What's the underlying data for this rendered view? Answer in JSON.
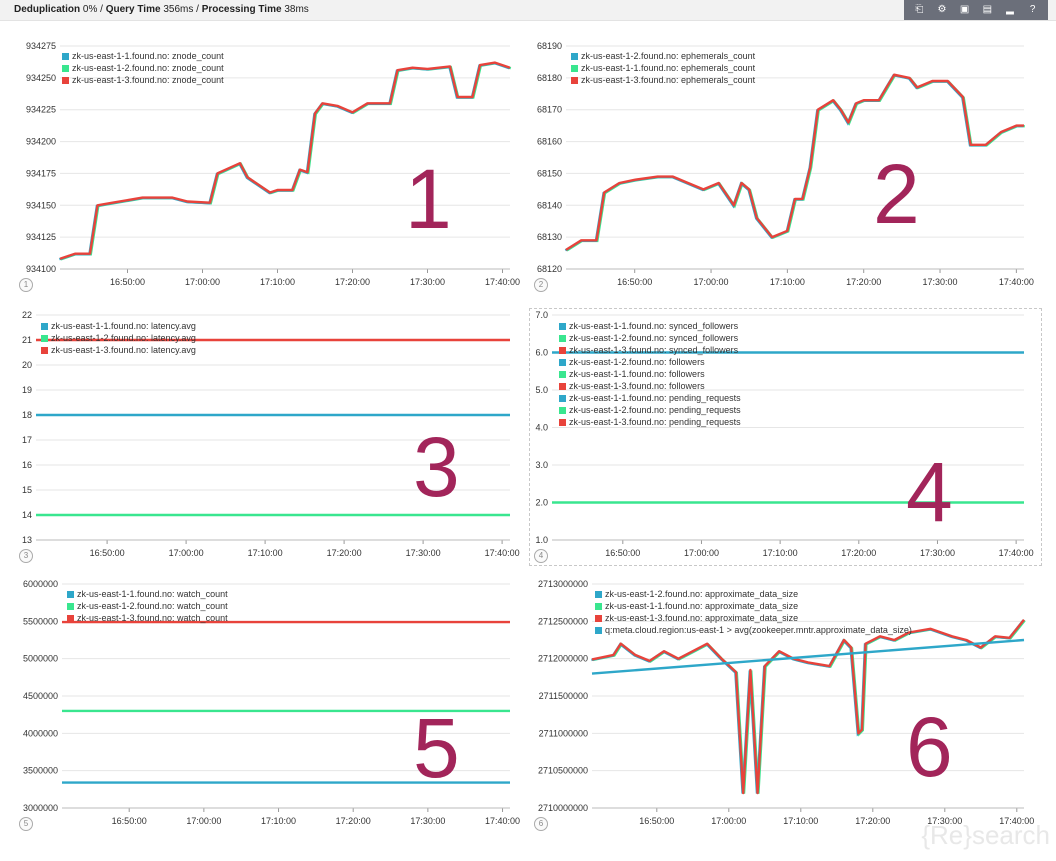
{
  "header": {
    "dedup_label": "Deduplication",
    "dedup_value": "0%",
    "query_label": "Query Time",
    "query_value": "356ms",
    "proc_label": "Processing Time",
    "proc_value": "38ms"
  },
  "toolbar": [
    {
      "icon": "export-icon",
      "glyph": "⎗"
    },
    {
      "icon": "gear-icon",
      "glyph": "⚙"
    },
    {
      "icon": "save-icon",
      "glyph": "▣"
    },
    {
      "icon": "folder-icon",
      "glyph": "▤"
    },
    {
      "icon": "chart-icon",
      "glyph": "▂"
    },
    {
      "icon": "help-icon",
      "glyph": "?"
    }
  ],
  "watermark": "{Re}search",
  "x_ticks": [
    "16:50:00",
    "17:00:00",
    "17:10:00",
    "17:20:00",
    "17:30:00",
    "17:40:00"
  ],
  "panels": [
    {
      "id": 1,
      "big": "1",
      "legend": [
        {
          "name": "zk-us-east-1-1.found.no: znode_count",
          "color": "#2ea7c9"
        },
        {
          "name": "zk-us-east-1-2.found.no: znode_count",
          "color": "#39e68f"
        },
        {
          "name": "zk-us-east-1-3.found.no: znode_count",
          "color": "#e8433b"
        }
      ]
    },
    {
      "id": 2,
      "big": "2",
      "legend": [
        {
          "name": "zk-us-east-1-2.found.no: ephemerals_count",
          "color": "#2ea7c9"
        },
        {
          "name": "zk-us-east-1-1.found.no: ephemerals_count",
          "color": "#39e68f"
        },
        {
          "name": "zk-us-east-1-3.found.no: ephemerals_count",
          "color": "#e8433b"
        }
      ]
    },
    {
      "id": 3,
      "big": "3",
      "legend": [
        {
          "name": "zk-us-east-1-1.found.no: latency.avg",
          "color": "#2ea7c9"
        },
        {
          "name": "zk-us-east-1-2.found.no: latency.avg",
          "color": "#39e68f"
        },
        {
          "name": "zk-us-east-1-3.found.no: latency.avg",
          "color": "#e8433b"
        }
      ]
    },
    {
      "id": 4,
      "big": "4",
      "legend": [
        {
          "name": "zk-us-east-1-1.found.no: synced_followers",
          "color": "#2ea7c9"
        },
        {
          "name": "zk-us-east-1-2.found.no: synced_followers",
          "color": "#39e68f"
        },
        {
          "name": "zk-us-east-1-3.found.no: synced_followers",
          "color": "#e8433b"
        },
        {
          "name": "zk-us-east-1-2.found.no: followers",
          "color": "#2ea7c9"
        },
        {
          "name": "zk-us-east-1-1.found.no: followers",
          "color": "#39e68f"
        },
        {
          "name": "zk-us-east-1-3.found.no: followers",
          "color": "#e8433b"
        },
        {
          "name": "zk-us-east-1-1.found.no: pending_requests",
          "color": "#2ea7c9"
        },
        {
          "name": "zk-us-east-1-2.found.no: pending_requests",
          "color": "#39e68f"
        },
        {
          "name": "zk-us-east-1-3.found.no: pending_requests",
          "color": "#e8433b"
        }
      ]
    },
    {
      "id": 5,
      "big": "5",
      "legend": [
        {
          "name": "zk-us-east-1-1.found.no: watch_count",
          "color": "#2ea7c9"
        },
        {
          "name": "zk-us-east-1-2.found.no: watch_count",
          "color": "#39e68f"
        },
        {
          "name": "zk-us-east-1-3.found.no: watch_count",
          "color": "#e8433b"
        }
      ]
    },
    {
      "id": 6,
      "big": "6",
      "legend": [
        {
          "name": "zk-us-east-1-2.found.no: approximate_data_size",
          "color": "#2ea7c9"
        },
        {
          "name": "zk-us-east-1-1.found.no: approximate_data_size",
          "color": "#39e68f"
        },
        {
          "name": "zk-us-east-1-3.found.no: approximate_data_size",
          "color": "#e8433b"
        },
        {
          "name": "q:meta.cloud.region:us-east-1 > avg(zookeeper.mntr.approximate_data_size)",
          "color": "#2ea7c9"
        }
      ]
    }
  ],
  "chart_data": [
    {
      "type": "line",
      "panel": 1,
      "y_ticks": [
        "934100",
        "934125",
        "934150",
        "934175",
        "934200",
        "934225",
        "934250",
        "934275"
      ],
      "ylim": [
        934100,
        934275
      ],
      "xlim": [
        "16:41",
        "17:41"
      ],
      "series": [
        {
          "name": "zk-us-east-1-3.found.no: znode_count",
          "color": "#e8433b",
          "points": [
            [
              "16:41",
              934108
            ],
            [
              "16:43",
              934112
            ],
            [
              "16:45",
              934112
            ],
            [
              "16:46",
              934150
            ],
            [
              "16:48",
              934152
            ],
            [
              "16:52",
              934156
            ],
            [
              "16:56",
              934156
            ],
            [
              "16:58",
              934153
            ],
            [
              "17:01",
              934152
            ],
            [
              "17:02",
              934175
            ],
            [
              "17:05",
              934183
            ],
            [
              "17:06",
              934172
            ],
            [
              "17:09",
              934160
            ],
            [
              "17:10",
              934162
            ],
            [
              "17:12",
              934162
            ],
            [
              "17:13",
              934178
            ],
            [
              "17:14",
              934176
            ],
            [
              "17:15",
              934222
            ],
            [
              "17:16",
              934230
            ],
            [
              "17:18",
              934228
            ],
            [
              "17:20",
              934223
            ],
            [
              "17:22",
              934230
            ],
            [
              "17:25",
              934230
            ],
            [
              "17:26",
              934256
            ],
            [
              "17:28",
              934258
            ],
            [
              "17:30",
              934257
            ],
            [
              "17:33",
              934259
            ],
            [
              "17:34",
              934235
            ],
            [
              "17:36",
              934235
            ],
            [
              "17:37",
              934260
            ],
            [
              "17:39",
              934262
            ],
            [
              "17:41",
              934258
            ]
          ]
        }
      ]
    },
    {
      "type": "line",
      "panel": 2,
      "y_ticks": [
        "68120",
        "68130",
        "68140",
        "68150",
        "68160",
        "68170",
        "68180",
        "68190"
      ],
      "ylim": [
        68120,
        68190
      ],
      "xlim": [
        "16:41",
        "17:41"
      ],
      "series": [
        {
          "name": "zk-us-east-1-3.found.no: ephemerals_count",
          "color": "#e8433b",
          "points": [
            [
              "16:41",
              68126
            ],
            [
              "16:43",
              68129
            ],
            [
              "16:45",
              68129
            ],
            [
              "16:46",
              68144
            ],
            [
              "16:48",
              68147
            ],
            [
              "16:50",
              68148
            ],
            [
              "16:53",
              68149
            ],
            [
              "16:55",
              68149
            ],
            [
              "16:57",
              68147
            ],
            [
              "16:59",
              68145
            ],
            [
              "17:01",
              68147
            ],
            [
              "17:03",
              68140
            ],
            [
              "17:04",
              68147
            ],
            [
              "17:05",
              68145
            ],
            [
              "17:06",
              68136
            ],
            [
              "17:08",
              68130
            ],
            [
              "17:10",
              68132
            ],
            [
              "17:11",
              68142
            ],
            [
              "17:12",
              68142
            ],
            [
              "17:13",
              68152
            ],
            [
              "17:14",
              68170
            ],
            [
              "17:16",
              68173
            ],
            [
              "17:17",
              68170
            ],
            [
              "17:18",
              68166
            ],
            [
              "17:19",
              68172
            ],
            [
              "17:20",
              68173
            ],
            [
              "17:22",
              68173
            ],
            [
              "17:23",
              68177
            ],
            [
              "17:24",
              68181
            ],
            [
              "17:26",
              68180
            ],
            [
              "17:27",
              68177
            ],
            [
              "17:29",
              68179
            ],
            [
              "17:31",
              68179
            ],
            [
              "17:33",
              68174
            ],
            [
              "17:34",
              68159
            ],
            [
              "17:36",
              68159
            ],
            [
              "17:38",
              68163
            ],
            [
              "17:40",
              68165
            ],
            [
              "17:41",
              68165
            ]
          ]
        }
      ]
    },
    {
      "type": "line",
      "panel": 3,
      "y_ticks": [
        "13",
        "14",
        "15",
        "16",
        "17",
        "18",
        "19",
        "20",
        "21",
        "22"
      ],
      "ylim": [
        13,
        22
      ],
      "xlim": [
        "16:41",
        "17:41"
      ],
      "series": [
        {
          "name": "zk-us-east-1-1.found.no: latency.avg",
          "color": "#2ea7c9",
          "points": [
            [
              "16:41",
              18
            ],
            [
              "17:41",
              18
            ]
          ]
        },
        {
          "name": "zk-us-east-1-2.found.no: latency.avg",
          "color": "#39e68f",
          "points": [
            [
              "16:41",
              14
            ],
            [
              "17:41",
              14
            ]
          ]
        },
        {
          "name": "zk-us-east-1-3.found.no: latency.avg",
          "color": "#e8433b",
          "points": [
            [
              "16:41",
              21
            ],
            [
              "17:41",
              21
            ]
          ]
        }
      ]
    },
    {
      "type": "line",
      "panel": 4,
      "y_ticks": [
        "1.0",
        "2.0",
        "3.0",
        "4.0",
        "5.0",
        "6.0",
        "7.0"
      ],
      "ylim": [
        1,
        7
      ],
      "xlim": [
        "16:41",
        "17:41"
      ],
      "series": [
        {
          "name": "zk-us-east-1-1.found.no: synced_followers",
          "color": "#2ea7c9",
          "points": [
            [
              "16:41",
              6
            ],
            [
              "17:41",
              6
            ]
          ]
        },
        {
          "name": "zk-us-east-1-2.found.no: followers",
          "color": "#39e68f",
          "points": [
            [
              "16:41",
              2
            ],
            [
              "17:41",
              2
            ]
          ]
        }
      ]
    },
    {
      "type": "line",
      "panel": 5,
      "y_ticks": [
        "3000000",
        "3500000",
        "4000000",
        "4500000",
        "5000000",
        "5500000",
        "6000000"
      ],
      "ylim": [
        3000000,
        6000000
      ],
      "xlim": [
        "16:41",
        "17:41"
      ],
      "series": [
        {
          "name": "zk-us-east-1-1.found.no: watch_count",
          "color": "#2ea7c9",
          "points": [
            [
              "16:41",
              3340000
            ],
            [
              "17:41",
              3340000
            ]
          ]
        },
        {
          "name": "zk-us-east-1-2.found.no: watch_count",
          "color": "#39e68f",
          "points": [
            [
              "16:41",
              4300000
            ],
            [
              "17:41",
              4300000
            ]
          ]
        },
        {
          "name": "zk-us-east-1-3.found.no: watch_count",
          "color": "#e8433b",
          "points": [
            [
              "16:41",
              5490000
            ],
            [
              "17:41",
              5490000
            ]
          ]
        }
      ]
    },
    {
      "type": "line",
      "panel": 6,
      "y_ticks": [
        "2710000000",
        "2710500000",
        "2711000000",
        "2711500000",
        "2712000000",
        "2712500000",
        "2713000000"
      ],
      "ylim": [
        2710000000,
        2713000000
      ],
      "xlim": [
        "16:41",
        "17:41"
      ],
      "series": [
        {
          "name": "zk-us-east-1-3.found.no: approximate_data_size",
          "color": "#e8433b",
          "points": [
            [
              "16:41",
              2711990000
            ],
            [
              "16:44",
              2712050000
            ],
            [
              "16:45",
              2712200000
            ],
            [
              "16:47",
              2712050000
            ],
            [
              "16:49",
              2711970000
            ],
            [
              "16:51",
              2712100000
            ],
            [
              "16:53",
              2712000000
            ],
            [
              "16:55",
              2712100000
            ],
            [
              "16:57",
              2712200000
            ],
            [
              "16:59",
              2712000000
            ],
            [
              "17:01",
              2711820000
            ],
            [
              "17:02",
              2710200000
            ],
            [
              "17:03",
              2711850000
            ],
            [
              "17:04",
              2710200000
            ],
            [
              "17:05",
              2711900000
            ],
            [
              "17:07",
              2712100000
            ],
            [
              "17:09",
              2712000000
            ],
            [
              "17:11",
              2711950000
            ],
            [
              "17:14",
              2711900000
            ],
            [
              "17:16",
              2712250000
            ],
            [
              "17:17",
              2712150000
            ],
            [
              "17:18",
              2711000000
            ],
            [
              "17:18.5",
              2711050000
            ],
            [
              "17:19",
              2712200000
            ],
            [
              "17:21",
              2712300000
            ],
            [
              "17:23",
              2712250000
            ],
            [
              "17:25",
              2712350000
            ],
            [
              "17:28",
              2712400000
            ],
            [
              "17:31",
              2712300000
            ],
            [
              "17:33",
              2712250000
            ],
            [
              "17:35",
              2712150000
            ],
            [
              "17:37",
              2712300000
            ],
            [
              "17:39",
              2712280000
            ],
            [
              "17:41",
              2712520000
            ]
          ]
        },
        {
          "name": "q:meta.cloud.region:us-east-1 > avg(zookeeper.mntr.approximate_data_size)",
          "color": "#2ea7c9",
          "points": [
            [
              "16:41",
              2711800000
            ],
            [
              "17:41",
              2712250000
            ]
          ]
        }
      ]
    }
  ]
}
